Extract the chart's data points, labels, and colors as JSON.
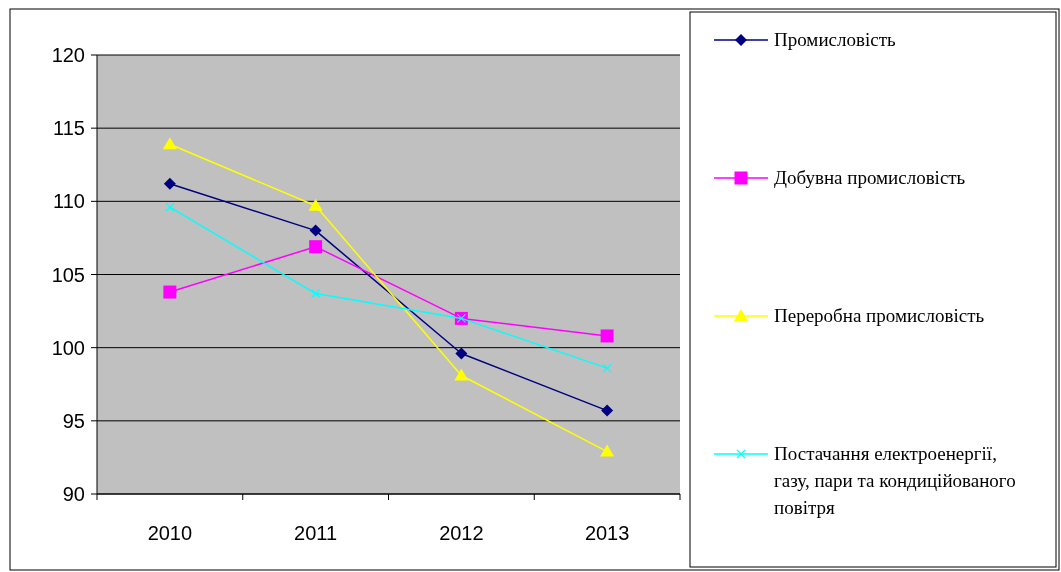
{
  "chart_data": {
    "type": "line",
    "categories": [
      "2010",
      "2011",
      "2012",
      "2013"
    ],
    "ylim": [
      90,
      120
    ],
    "yticks": [
      90,
      95,
      100,
      105,
      110,
      115,
      120
    ],
    "grid": "y",
    "legend": "right",
    "series": [
      {
        "name": "Промисловість",
        "color": "#000080",
        "marker": "diamond",
        "values": [
          111.2,
          108.0,
          99.6,
          95.7
        ]
      },
      {
        "name": "Добувна промисловість",
        "color": "#ff00ff",
        "marker": "square",
        "values": [
          103.8,
          106.9,
          102.0,
          100.8
        ]
      },
      {
        "name": "Переробна промисловість",
        "color": "#ffff00",
        "marker": "triangle",
        "values": [
          113.9,
          109.7,
          98.1,
          92.9
        ]
      },
      {
        "name": "Постачання електроенергії, газу, пари та кондиційованого повітря",
        "color": "#00ffff",
        "marker": "cross",
        "values": [
          109.6,
          103.7,
          102.0,
          98.6
        ]
      }
    ]
  }
}
